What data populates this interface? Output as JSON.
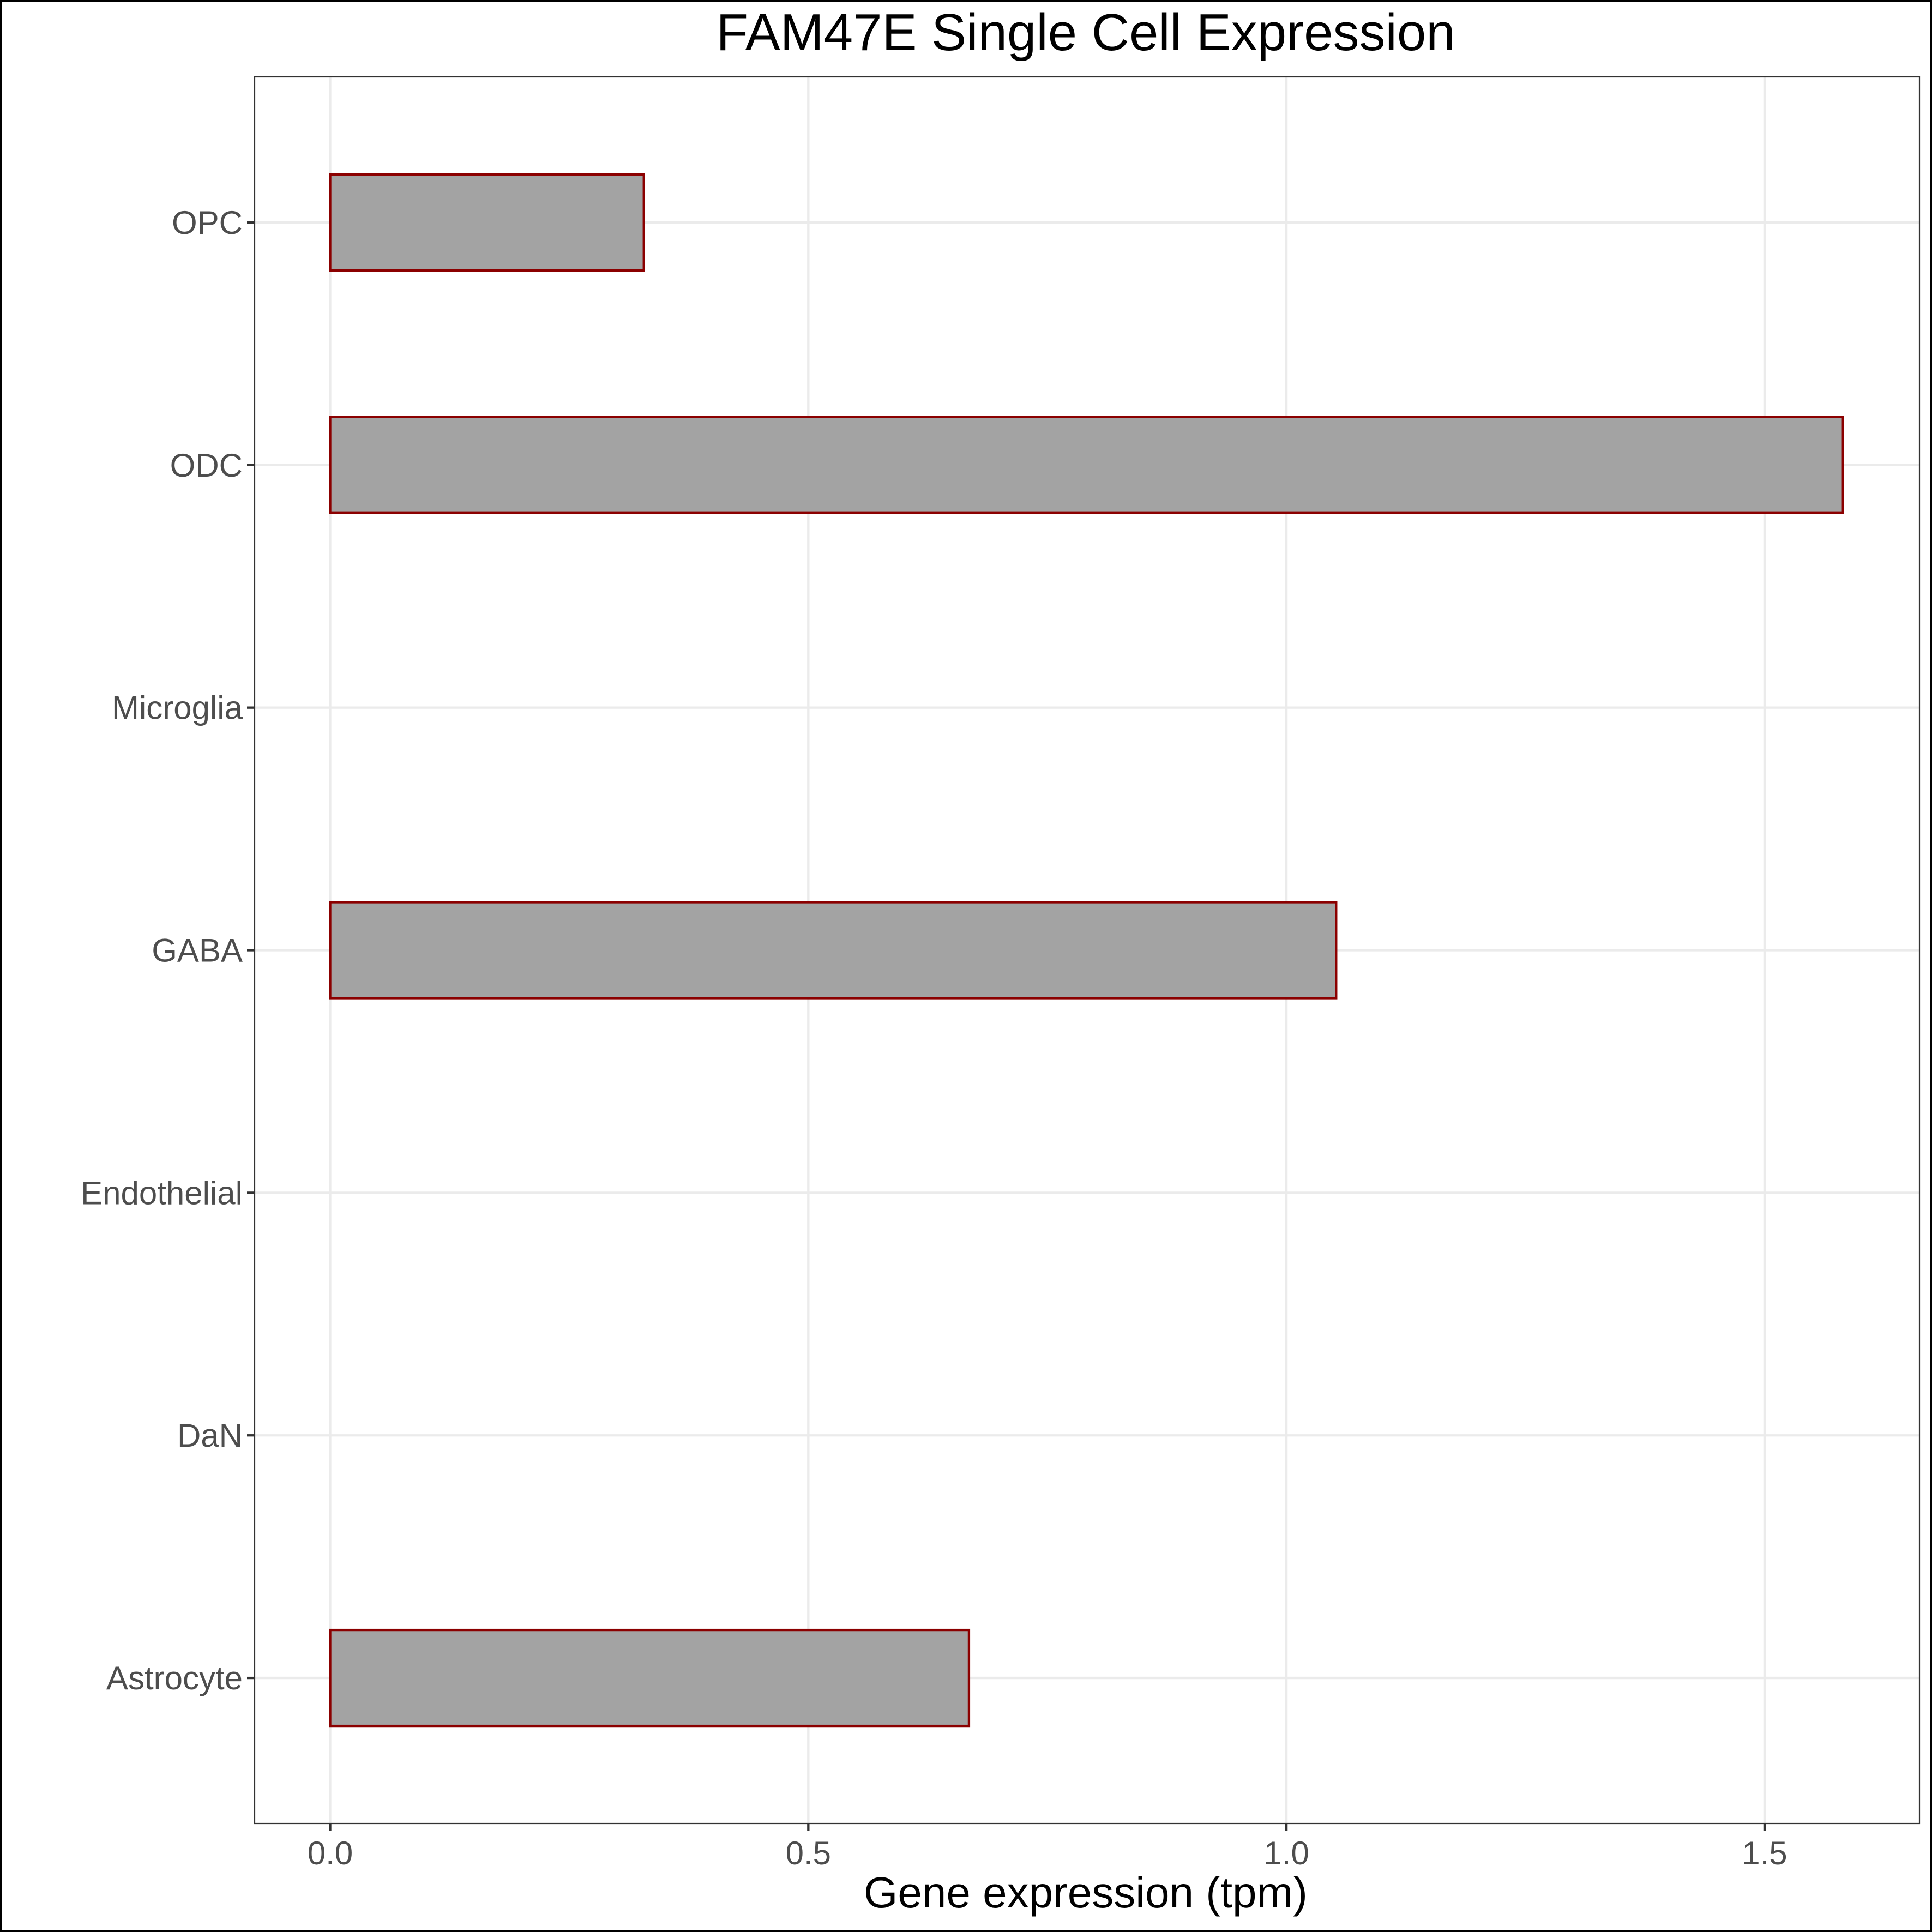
{
  "chart_data": {
    "type": "bar",
    "orientation": "horizontal",
    "title": "FAM47E Single Cell Expression",
    "xlabel": "Gene expression (tpm)",
    "ylabel": "",
    "categories": [
      "Astrocyte",
      "DaN",
      "Endothelial",
      "GABA",
      "Microglia",
      "ODC",
      "OPC"
    ],
    "values": [
      0.668,
      0.0,
      0.0,
      1.052,
      0.0,
      1.582,
      0.328
    ],
    "xlim": [
      -0.079,
      1.662
    ],
    "xticks": [
      0.0,
      0.5,
      1.0,
      1.5
    ],
    "xtick_labels": [
      "0.0",
      "0.5",
      "1.0",
      "1.5"
    ],
    "grid": true,
    "legend": "none",
    "colors": {
      "bar_fill": "#a3a3a3",
      "bar_outline": "#8b0000",
      "grid": "#ebebeb",
      "tick_label": "#4d4d4d",
      "panel_border": "#333333"
    }
  }
}
